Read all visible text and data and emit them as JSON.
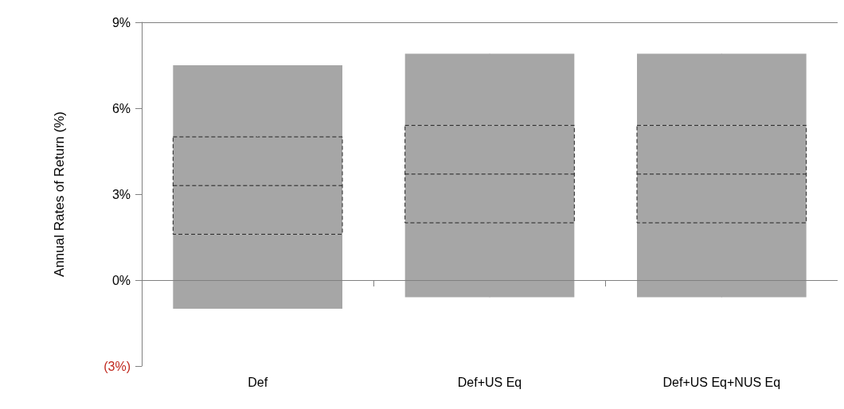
{
  "chart_data": {
    "type": "box",
    "ylabel": "Annual Rates of Return (%)",
    "categories": [
      "Def",
      "Def+US Eq",
      "Def+US Eq+NUS Eq"
    ],
    "series": [
      {
        "color": "#a6a6a6",
        "boxes": [
          {
            "low": -1.0,
            "q1": 1.6,
            "median": 3.3,
            "q3": 5.0,
            "high": 7.5
          },
          {
            "low": -0.6,
            "q1": 2.0,
            "median": 3.7,
            "q3": 5.4,
            "high": 7.9
          },
          {
            "low": -0.6,
            "q1": 2.0,
            "median": 3.7,
            "q3": 5.4,
            "high": 7.9
          }
        ]
      }
    ],
    "ylim": [
      -3,
      9
    ],
    "yticks": [
      {
        "value": -3,
        "label": "(3%)"
      },
      {
        "value": 0,
        "label": "0%"
      },
      {
        "value": 3,
        "label": "3%"
      },
      {
        "value": 6,
        "label": "6%"
      },
      {
        "value": 9,
        "label": "9%"
      }
    ],
    "ref_lines": [
      {
        "axis": "y",
        "value": 0,
        "color": "#808080"
      }
    ],
    "grid": false
  }
}
